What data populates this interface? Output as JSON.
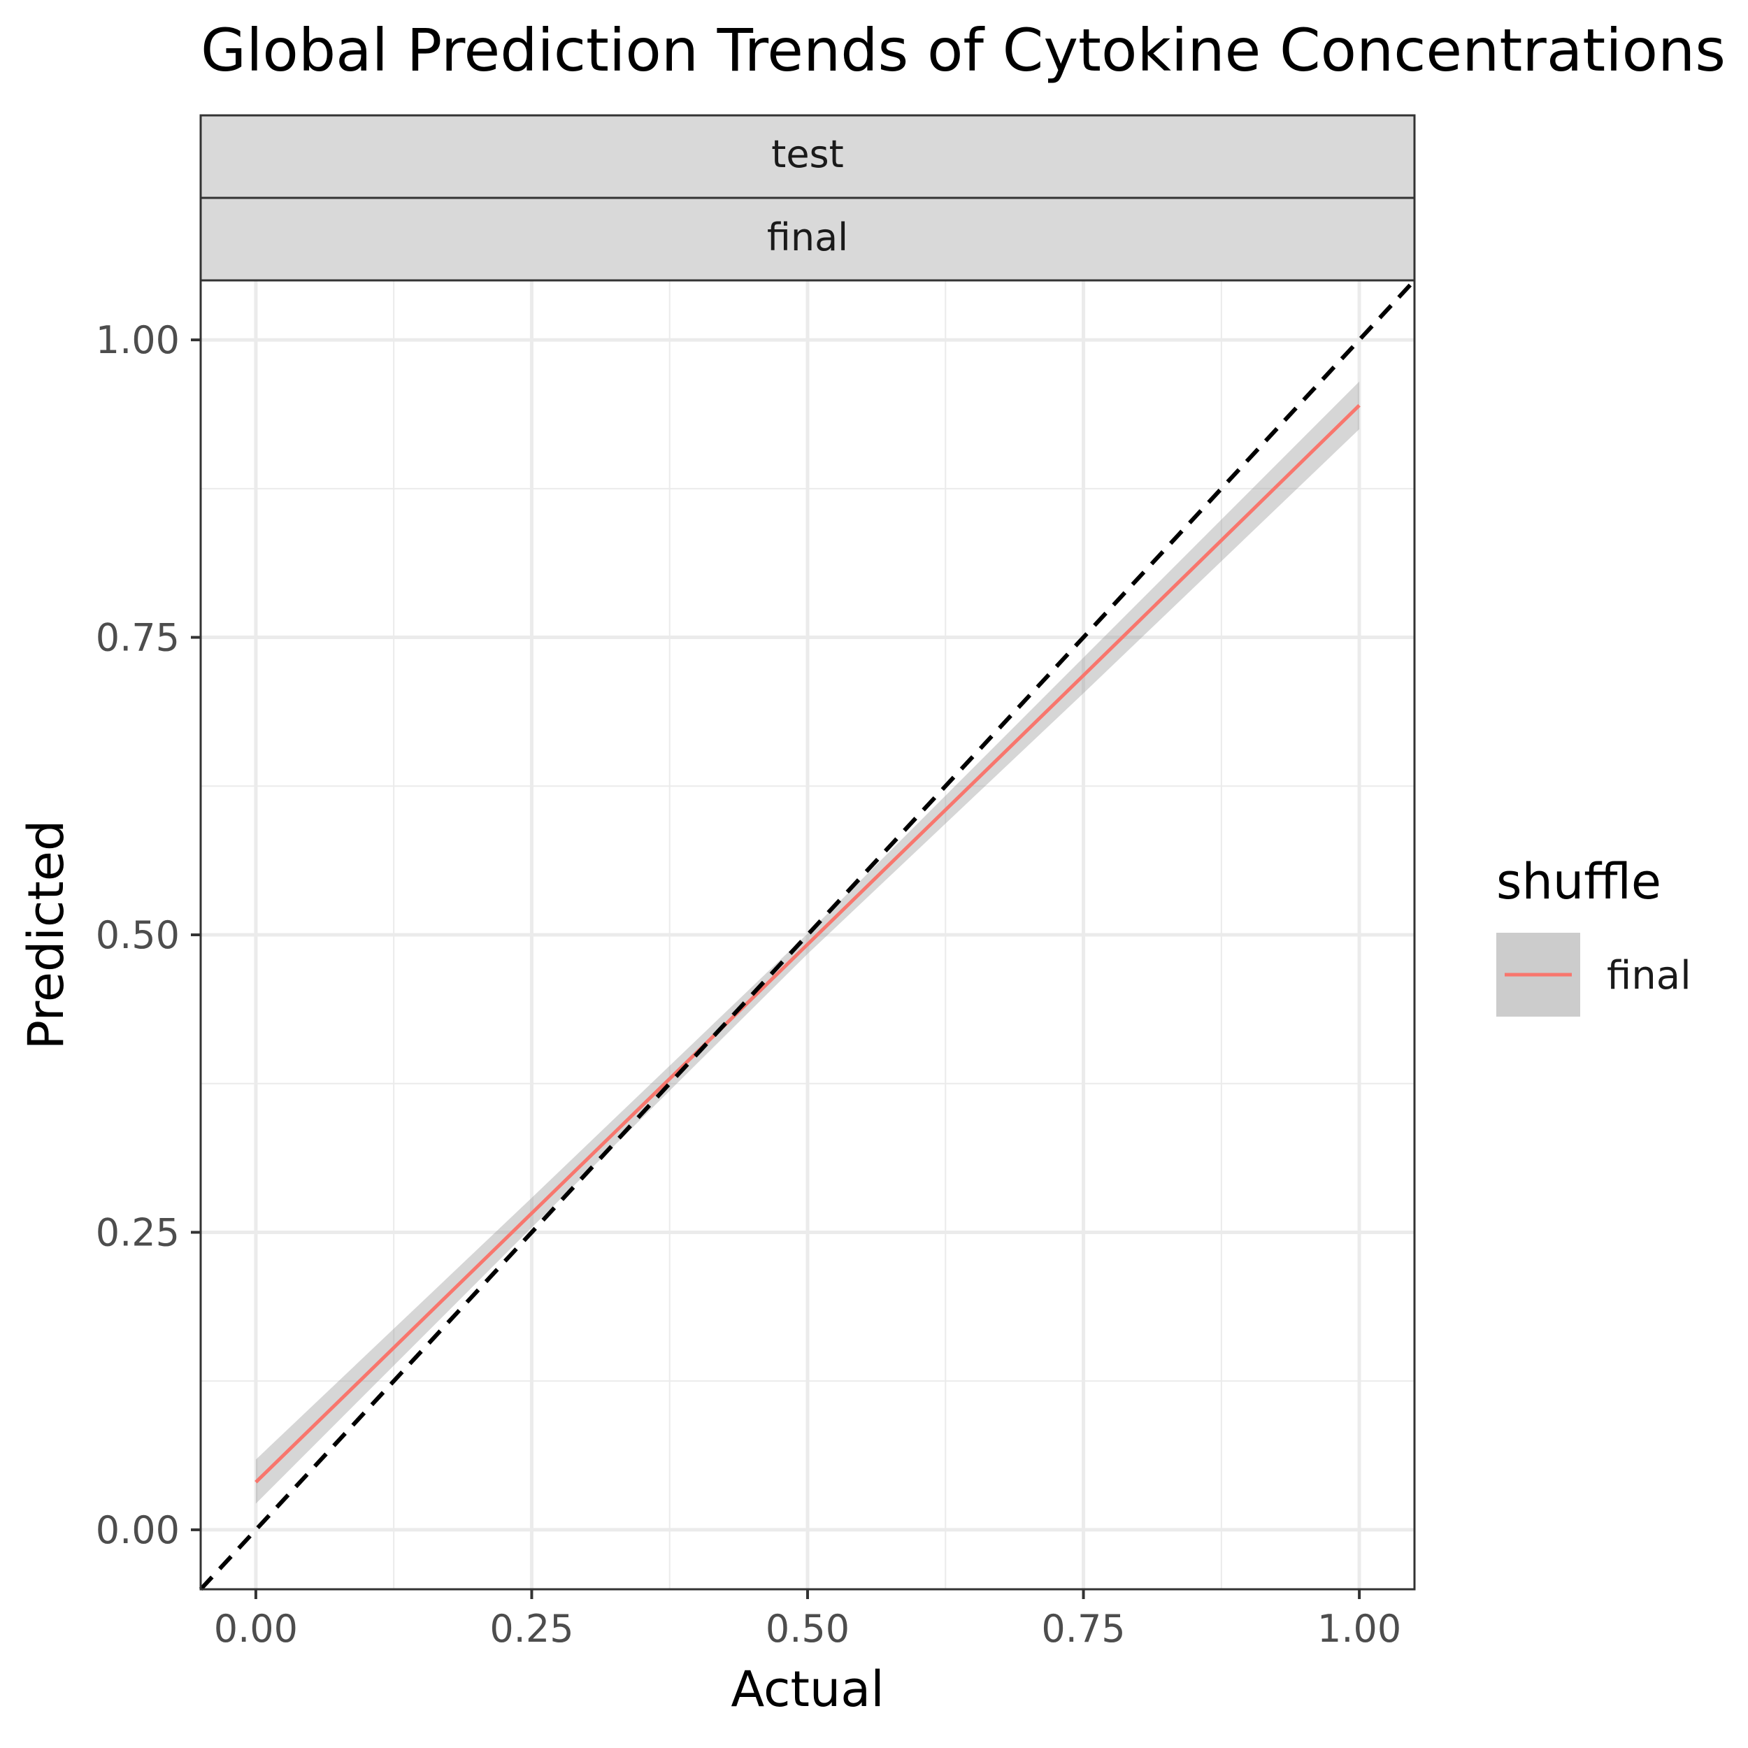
{
  "chart_data": {
    "type": "line",
    "title": "Global Prediction Trends of Cytokine Concentrations",
    "xlabel": "Actual",
    "ylabel": "Predicted",
    "facet_strips": [
      "test",
      "final"
    ],
    "xlim": [
      -0.05,
      1.05
    ],
    "ylim": [
      -0.05,
      1.05
    ],
    "x_ticks": [
      0.0,
      0.25,
      0.5,
      0.75,
      1.0
    ],
    "x_tick_labels": [
      "0.00",
      "0.25",
      "0.50",
      "0.75",
      "1.00"
    ],
    "y_ticks": [
      0.0,
      0.25,
      0.5,
      0.75,
      1.0
    ],
    "y_tick_labels": [
      "0.00",
      "0.25",
      "0.50",
      "0.75",
      "1.00"
    ],
    "grid": true,
    "legend": {
      "title": "shuffle",
      "position": "right",
      "entries": [
        "final"
      ]
    },
    "series": [
      {
        "name": "final",
        "color": "#F8766D",
        "x": [
          0.0,
          0.25,
          0.5,
          0.75,
          1.0
        ],
        "y": [
          0.04,
          0.266,
          0.492,
          0.718,
          0.945
        ],
        "ci_lower": [
          0.022,
          0.254,
          0.484,
          0.703,
          0.925
        ],
        "ci_upper": [
          0.059,
          0.279,
          0.501,
          0.733,
          0.965
        ]
      }
    ],
    "reference_line": {
      "type": "identity",
      "style": "dashed",
      "color": "#000000"
    }
  }
}
